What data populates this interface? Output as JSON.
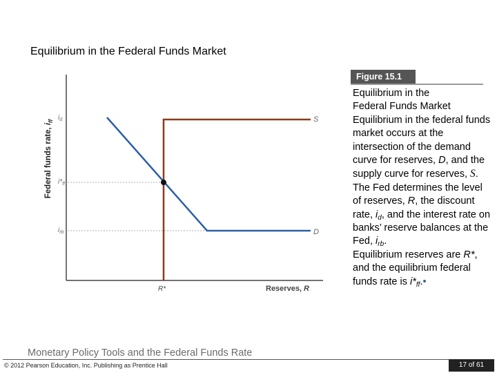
{
  "slide": {
    "title": "Equilibrium in the Federal Funds Market",
    "figure_label": "Figure 15.1",
    "caption": {
      "heading1": "Equilibrium in the",
      "heading2": "Federal Funds Market",
      "p1a": "Equilibrium in the federal funds market occurs at the intersection of the demand curve for reserves, ",
      "p1_D": "D",
      "p1b": ", and the supply curve for reserves, ",
      "p1_S": "S",
      "p1c": ".",
      "p2a": "The Fed determines the level of reserves, ",
      "p2_R": "R",
      "p2b": ", the discount rate, ",
      "p2_id": "i",
      "p2_id_sub": "d",
      "p2c": ", and the interest rate on banks’ reserve balances at the Fed, ",
      "p2_ior": "i",
      "p2_ior_sub": "rb",
      "p2d": ".",
      "p3a": "Equilibrium reserves are ",
      "p3_R": "R*",
      "p3b": ", and the equilibrium federal funds rate is ",
      "p3_i": "i*",
      "p3_i_sub": "ff",
      "p3c": ".",
      "bullet": "•"
    },
    "footer_title": "Monetary Policy Tools and the Federal Funds Rate",
    "copyright": "© 2012 Pearson Education, Inc. Publishing as Prentice Hall",
    "page": "17 of 61"
  },
  "diagram": {
    "y_axis_label": "Federal funds rate, ",
    "y_axis_symbol": "i",
    "y_axis_symbol_sub": "ff",
    "x_axis_label": "Reserves, ",
    "x_axis_symbol": "R",
    "id_label": "i",
    "id_sub": "d",
    "iff_label": "i*",
    "iff_sub": "ff",
    "ior_label": "i",
    "ior_sub": "rb",
    "r_label": "R*",
    "supply_label": "S",
    "demand_label": "D",
    "colors": {
      "supply": "#8b3a1a",
      "demand": "#2a5fa8",
      "axis": "#444444",
      "dotted": "#999999"
    }
  }
}
